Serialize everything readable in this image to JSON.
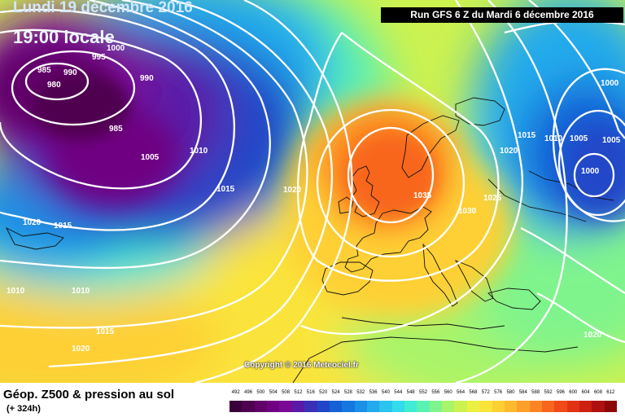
{
  "header": {
    "date_title": "Lundi 19 décembre 2016",
    "time_title": "19:00 locale",
    "run_info": "Run GFS 6 Z du Mardi 6 décembre 2016"
  },
  "copyright": "Copyright © 2016 Meteociel.fr",
  "footer": {
    "product_title": "Géop. Z500 & pression au sol",
    "forecast_step": "(+ 324h)"
  },
  "legend": {
    "values": [
      "492",
      "496",
      "500",
      "504",
      "508",
      "512",
      "516",
      "520",
      "524",
      "528",
      "532",
      "536",
      "540",
      "544",
      "548",
      "552",
      "556",
      "560",
      "564",
      "568",
      "572",
      "576",
      "580",
      "584",
      "588",
      "592",
      "596",
      "600",
      "604",
      "608",
      "612"
    ],
    "colors": [
      "#3a003a",
      "#4f0050",
      "#62006a",
      "#700082",
      "#7a0a96",
      "#5a1aa8",
      "#3a30b8",
      "#2046c8",
      "#1460d6",
      "#1478e0",
      "#1a90e6",
      "#22aaec",
      "#2ac4ee",
      "#32dcec",
      "#40ecd4",
      "#5af2b2",
      "#80f48c",
      "#a8f46a",
      "#ccf250",
      "#ecf040",
      "#fae43a",
      "#fed034",
      "#feba2e",
      "#fea02a",
      "#fc8424",
      "#f8661e",
      "#f04a18",
      "#e23214",
      "#cc2010",
      "#b01010",
      "#8c0808"
    ]
  },
  "map": {
    "isobar_labels": [
      {
        "text": "985",
        "id": "low-985-a"
      },
      {
        "text": "980",
        "id": "low-980"
      },
      {
        "text": "990",
        "id": "isobar-990-a"
      },
      {
        "text": "995",
        "id": "isobar-995"
      },
      {
        "text": "1000",
        "id": "isobar-1000-a"
      },
      {
        "text": "990",
        "id": "isobar-990-b"
      },
      {
        "text": "985",
        "id": "low-985-b"
      },
      {
        "text": "1005",
        "id": "isobar-1005-a"
      },
      {
        "text": "1010",
        "id": "isobar-1010-a"
      },
      {
        "text": "1015",
        "id": "isobar-1015-a"
      },
      {
        "text": "1020",
        "id": "isobar-1020-a"
      },
      {
        "text": "1015",
        "id": "isobar-1015-b"
      },
      {
        "text": "1020",
        "id": "isobar-1020-b"
      },
      {
        "text": "1035",
        "id": "high-1035"
      },
      {
        "text": "1030",
        "id": "isobar-1030"
      },
      {
        "text": "1025",
        "id": "isobar-1025"
      },
      {
        "text": "1020",
        "id": "isobar-1020-c"
      },
      {
        "text": "1015",
        "id": "isobar-1015-c"
      },
      {
        "text": "1010",
        "id": "isobar-1010-b"
      },
      {
        "text": "1005",
        "id": "isobar-1005-b"
      },
      {
        "text": "1005",
        "id": "isobar-1005-c"
      },
      {
        "text": "1000",
        "id": "isobar-1000-b"
      },
      {
        "text": "1000",
        "id": "low-1000-east"
      },
      {
        "text": "1010",
        "id": "isobar-1010-c"
      },
      {
        "text": "1010",
        "id": "isobar-1010-d"
      },
      {
        "text": "1015",
        "id": "isobar-1015-d"
      },
      {
        "text": "1020",
        "id": "isobar-1020-d"
      },
      {
        "text": "1020",
        "id": "isobar-1020-e"
      }
    ]
  }
}
